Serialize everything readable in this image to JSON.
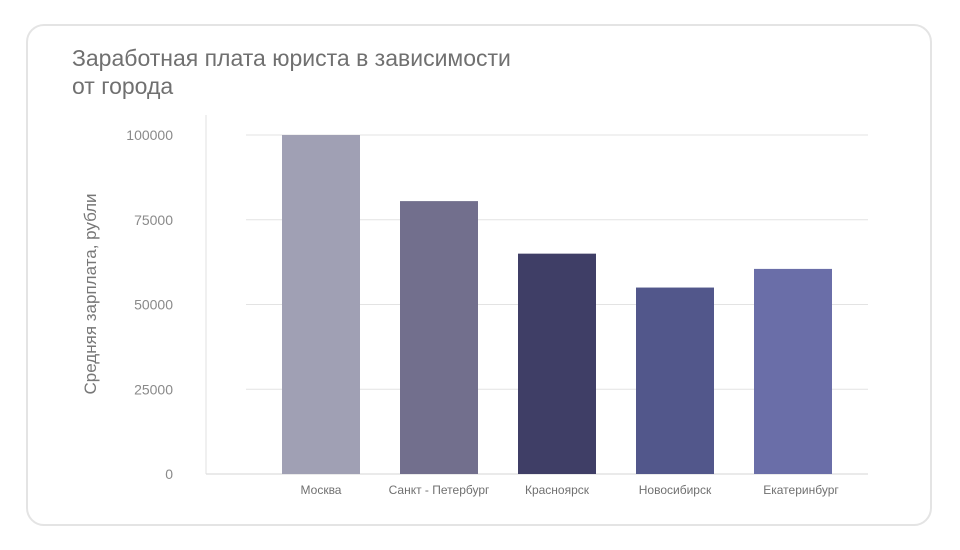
{
  "chart_data": {
    "type": "bar",
    "title": "Заработная плата юриста в зависимости\nот города",
    "xlabel": "",
    "ylabel": "Средняя зарплата, рубли",
    "categories": [
      "Москва",
      "Санкт - Петербург",
      "Красноярск",
      "Новосибирск",
      "Екатеринбург"
    ],
    "values": [
      100000,
      80500,
      65000,
      55000,
      60500
    ],
    "bar_colors": [
      "#a0a0b4",
      "#726f8d",
      "#3f3e66",
      "#52578b",
      "#6a6ea8"
    ],
    "yticks": [
      "0",
      "25000",
      "50000",
      "75000",
      "100000"
    ],
    "ylim": [
      0,
      100000
    ],
    "grid": true,
    "legend": "none"
  }
}
